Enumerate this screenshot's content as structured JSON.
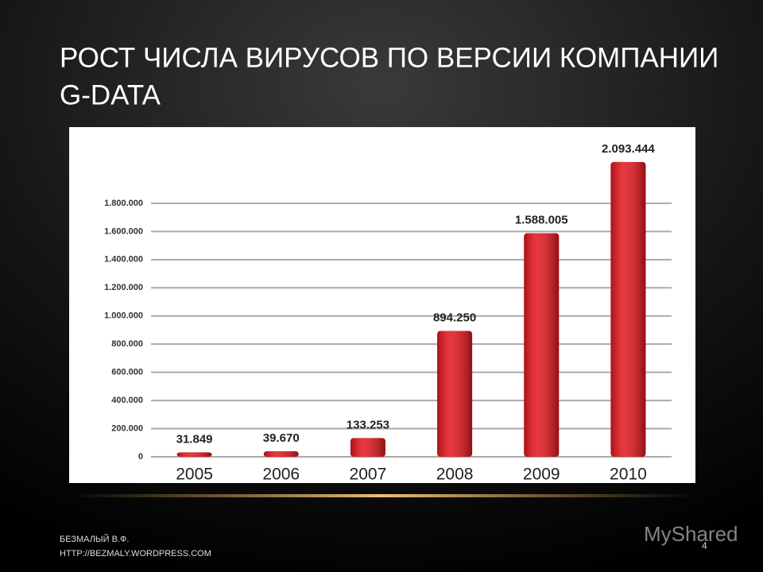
{
  "slide": {
    "footer_author": "БЕЗМАЛЫЙ В.Ф.",
    "footer_url": "HTTP://BEZMALY.WORDPRESS.COM",
    "page_number": "4",
    "watermark": "MyShared"
  },
  "chart_data": {
    "type": "bar",
    "title_lines": [
      "РОСТ ЧИСЛА ВИРУСОВ ПО ВЕРСИИ КОМПАНИИ",
      "G-DATA"
    ],
    "categories": [
      "2005",
      "2006",
      "2007",
      "2008",
      "2009",
      "2010"
    ],
    "values": [
      31849,
      39670,
      133253,
      894250,
      1588005,
      2093444
    ],
    "value_labels": [
      "31.849",
      "39.670",
      "133.253",
      "894.250",
      "1.588.005",
      "2.093.444"
    ],
    "color": "#e3141c",
    "ylim": [
      0,
      2200000
    ],
    "yticks": [
      0,
      {
        "value": 200000,
        "label": "200.000"
      },
      {
        "value": 400000,
        "label": "400.000"
      },
      {
        "value": 600000,
        "label": "600.000"
      },
      {
        "value": 800000,
        "label": "800.000"
      },
      {
        "value": 1000000,
        "label": "1.000.000"
      },
      {
        "value": 1200000,
        "label": "1.200.000"
      },
      {
        "value": 1400000,
        "label": "1.400.000"
      },
      {
        "value": 1600000,
        "label": "1.600.000"
      },
      {
        "value": 1800000,
        "label": "1.800.000"
      }
    ],
    "grid": true
  }
}
